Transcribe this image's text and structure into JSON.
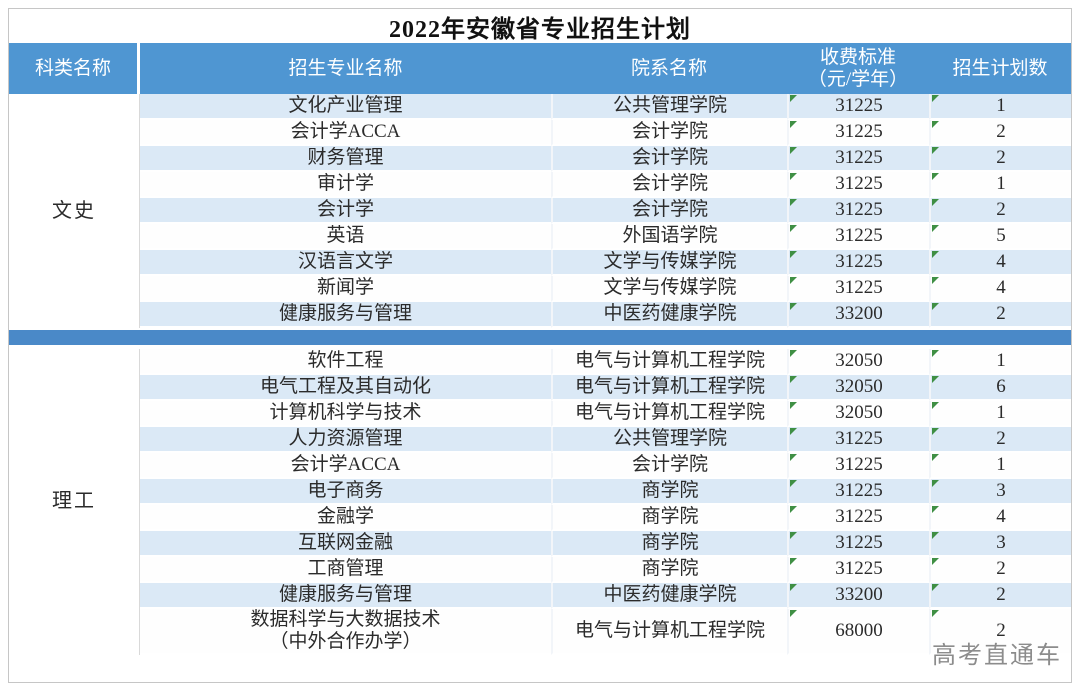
{
  "title": "2022年安徽省专业招生计划",
  "watermark": "高考直通车",
  "colors": {
    "header_blue": "#4f96d2",
    "separator_blue": "#4a89c8",
    "row_light_blue": "#dbe9f6",
    "row_white": "#fefefe",
    "flag_green": "#3f8f44",
    "watermark_gray": "#8c8c8c"
  },
  "table": {
    "headers": {
      "category": "科类名称",
      "major": "招生专业名称",
      "department": "院系名称",
      "fee_line1": "收费标准",
      "fee_line2": "（元/学年）",
      "plan": "招生计划数"
    },
    "sections": [
      {
        "category": "文史",
        "rows": [
          [
            "文化产业管理",
            "公共管理学院",
            "31225",
            "1"
          ],
          [
            "会计学ACCA",
            "会计学院",
            "31225",
            "2"
          ],
          [
            "财务管理",
            "会计学院",
            "31225",
            "2"
          ],
          [
            "审计学",
            "会计学院",
            "31225",
            "1"
          ],
          [
            "会计学",
            "会计学院",
            "31225",
            "2"
          ],
          [
            "英语",
            "外国语学院",
            "31225",
            "5"
          ],
          [
            "汉语言文学",
            "文学与传媒学院",
            "31225",
            "4"
          ],
          [
            "新闻学",
            "文学与传媒学院",
            "31225",
            "4"
          ],
          [
            "健康服务与管理",
            "中医药健康学院",
            "33200",
            "2"
          ]
        ]
      },
      {
        "category": "理工",
        "rows": [
          [
            "软件工程",
            "电气与计算机工程学院",
            "32050",
            "1"
          ],
          [
            "电气工程及其自动化",
            "电气与计算机工程学院",
            "32050",
            "6"
          ],
          [
            "计算机科学与技术",
            "电气与计算机工程学院",
            "32050",
            "1"
          ],
          [
            "人力资源管理",
            "公共管理学院",
            "31225",
            "2"
          ],
          [
            "会计学ACCA",
            "会计学院",
            "31225",
            "1"
          ],
          [
            "电子商务",
            "商学院",
            "31225",
            "3"
          ],
          [
            "金融学",
            "商学院",
            "31225",
            "4"
          ],
          [
            "互联网金融",
            "商学院",
            "31225",
            "3"
          ],
          [
            "工商管理",
            "商学院",
            "31225",
            "2"
          ],
          [
            "健康服务与管理",
            "中医药健康学院",
            "33200",
            "2"
          ],
          [
            "数据科学与大数据技术\n（中外合作办学）",
            "电气与计算机工程学院",
            "68000",
            "2"
          ]
        ]
      }
    ]
  }
}
